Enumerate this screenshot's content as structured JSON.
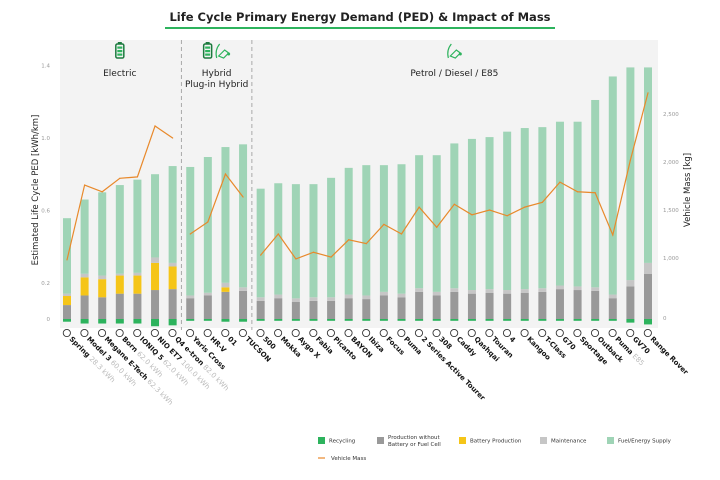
{
  "chart_data": {
    "type": "bar",
    "stacked": true,
    "title": "Life Cycle Primary Energy Demand (PED) & Impact of Mass",
    "ylabel": "Estimated Life Cycle PED [kWh/km]",
    "y2label": "Vehicle Mass [kg]",
    "ylim": [
      -0.05,
      1.5
    ],
    "yticks": [
      {
        "v": 0,
        "t": "0"
      },
      {
        "v": 0.2,
        "t": "0.2"
      },
      {
        "v": 0.6,
        "t": "0.6"
      },
      {
        "v": 1.0,
        "t": "1.0"
      },
      {
        "v": 1.4,
        "t": "1.4"
      }
    ],
    "y2ticks": [
      {
        "v": 1000,
        "t": "1,000"
      },
      {
        "v": 1500,
        "t": "1,500"
      },
      {
        "v": 2000,
        "t": "2,000"
      },
      {
        "v": 2500,
        "t": "2,500"
      }
    ],
    "y2_zero_label": "0",
    "grid": false,
    "legend_position": "bottom-right",
    "groups": [
      {
        "label": "Electric",
        "icon": "battery-icon",
        "start": 0,
        "end": 6
      },
      {
        "label": "Hybrid",
        "label2": "Plug-in Hybrid",
        "icon": "battery-fuel-icon",
        "start": 7,
        "end": 10
      },
      {
        "label": "Petrol / Diesel / E85",
        "icon": "fuel-nozzle-icon",
        "start": 11,
        "end": 33
      }
    ],
    "categories": [
      "Spring",
      "Model 3",
      "Megane E-Tech",
      "Born",
      "IONIQ 5",
      "NIO ET7",
      "Q4 e-tron",
      "Yaris Cross",
      "HR-V",
      "01",
      "TUCSON",
      "500",
      "Mokka",
      "Aygo X",
      "Fabia",
      "Picanto",
      "BAYON",
      "Ibiza",
      "Focus",
      "Puma",
      "2 Series Active Tourer",
      "308",
      "Caddy",
      "Qashqai",
      "Touran",
      "4",
      "Kangoo",
      "T-Class",
      "G70",
      "Sportage",
      "Outback",
      "Puma",
      "GV70",
      "Range Rover"
    ],
    "category_notes": [
      "28.3 kWh",
      "60.0 kWh",
      "62.3 kWh",
      "62.0 kWh",
      "62.0 kWh",
      "100.0 kWh",
      "82.0 kWh",
      "",
      "",
      "",
      "",
      "",
      "",
      "",
      "",
      "",
      "",
      "",
      "",
      "",
      "",
      "",
      "",
      "",
      "",
      "",
      "",
      "",
      "",
      "",
      "",
      "E85",
      "",
      ""
    ],
    "series": [
      {
        "name": "Recycling",
        "color": "#2db35d",
        "values": [
          -0.015,
          -0.025,
          -0.025,
          -0.025,
          -0.025,
          -0.04,
          -0.035,
          -0.01,
          -0.01,
          -0.015,
          -0.015,
          -0.01,
          -0.01,
          -0.01,
          -0.01,
          -0.01,
          -0.01,
          -0.01,
          -0.01,
          -0.01,
          -0.01,
          -0.01,
          -0.01,
          -0.01,
          -0.01,
          -0.01,
          -0.01,
          -0.01,
          -0.01,
          -0.01,
          -0.01,
          -0.01,
          -0.02,
          -0.03
        ]
      },
      {
        "name": "Production without Battery or Fuel Cell",
        "color": "#999999",
        "values": [
          0.077,
          0.13,
          0.12,
          0.14,
          0.14,
          0.16,
          0.165,
          0.115,
          0.13,
          0.15,
          0.155,
          0.1,
          0.115,
          0.094,
          0.1,
          0.1,
          0.115,
          0.11,
          0.13,
          0.12,
          0.15,
          0.13,
          0.15,
          0.14,
          0.145,
          0.14,
          0.145,
          0.15,
          0.165,
          0.16,
          0.155,
          0.115,
          0.18,
          0.25
        ]
      },
      {
        "name": "Battery Production",
        "color": "#f5c518",
        "values": [
          0.05,
          0.1,
          0.1,
          0.1,
          0.1,
          0.15,
          0.125,
          0,
          0,
          0.025,
          0,
          0,
          0,
          0,
          0,
          0,
          0,
          0,
          0,
          0,
          0,
          0,
          0,
          0,
          0,
          0,
          0,
          0,
          0,
          0,
          0,
          0,
          0,
          0
        ]
      },
      {
        "name": "Maintenance",
        "color": "#c6c6c6",
        "values": [
          0.013,
          0.02,
          0.02,
          0.01,
          0.015,
          0.03,
          0.02,
          0.015,
          0.015,
          0.025,
          0.02,
          0.02,
          0.02,
          0.02,
          0.02,
          0.02,
          0.02,
          0.02,
          0.02,
          0.02,
          0.02,
          0.02,
          0.02,
          0.02,
          0.02,
          0.02,
          0.02,
          0.02,
          0.02,
          0.02,
          0.02,
          0.02,
          0.035,
          0.06
        ]
      },
      {
        "name": "Fuel/Energy Supply",
        "color": "#9fd4b6",
        "values": [
          0.417,
          0.41,
          0.46,
          0.49,
          0.515,
          0.46,
          0.535,
          0.71,
          0.75,
          0.75,
          0.79,
          0.6,
          0.615,
          0.631,
          0.625,
          0.66,
          0.7,
          0.72,
          0.7,
          0.715,
          0.735,
          0.755,
          0.8,
          0.835,
          0.84,
          0.875,
          0.89,
          0.89,
          0.905,
          0.91,
          1.035,
          1.205,
          1.175,
          1.08
        ]
      }
    ],
    "line_series": {
      "name": "Vehicle Mass",
      "color": "#e8892b",
      "axis": "right",
      "values": [
        980,
        1760,
        1690,
        1830,
        1845,
        2375,
        2250,
        1250,
        1375,
        1875,
        1635,
        1030,
        1250,
        990,
        1060,
        1010,
        1190,
        1150,
        1350,
        1250,
        1530,
        1320,
        1560,
        1450,
        1500,
        1440,
        1530,
        1580,
        1790,
        1690,
        1680,
        1240,
        2020,
        2720
      ]
    },
    "legend": [
      {
        "label": "Recycling",
        "color": "#2db35d"
      },
      {
        "label": "Production without",
        "label2": "Battery or Fuel Cell",
        "color": "#999999"
      },
      {
        "label": "Battery Production",
        "color": "#f5c518"
      },
      {
        "label": "Maintenance",
        "color": "#c6c6c6"
      },
      {
        "label": "Fuel/Energy Supply",
        "color": "#9fd4b6"
      },
      {
        "label": "Vehicle Mass",
        "color": "#e8892b",
        "kind": "line"
      }
    ]
  }
}
